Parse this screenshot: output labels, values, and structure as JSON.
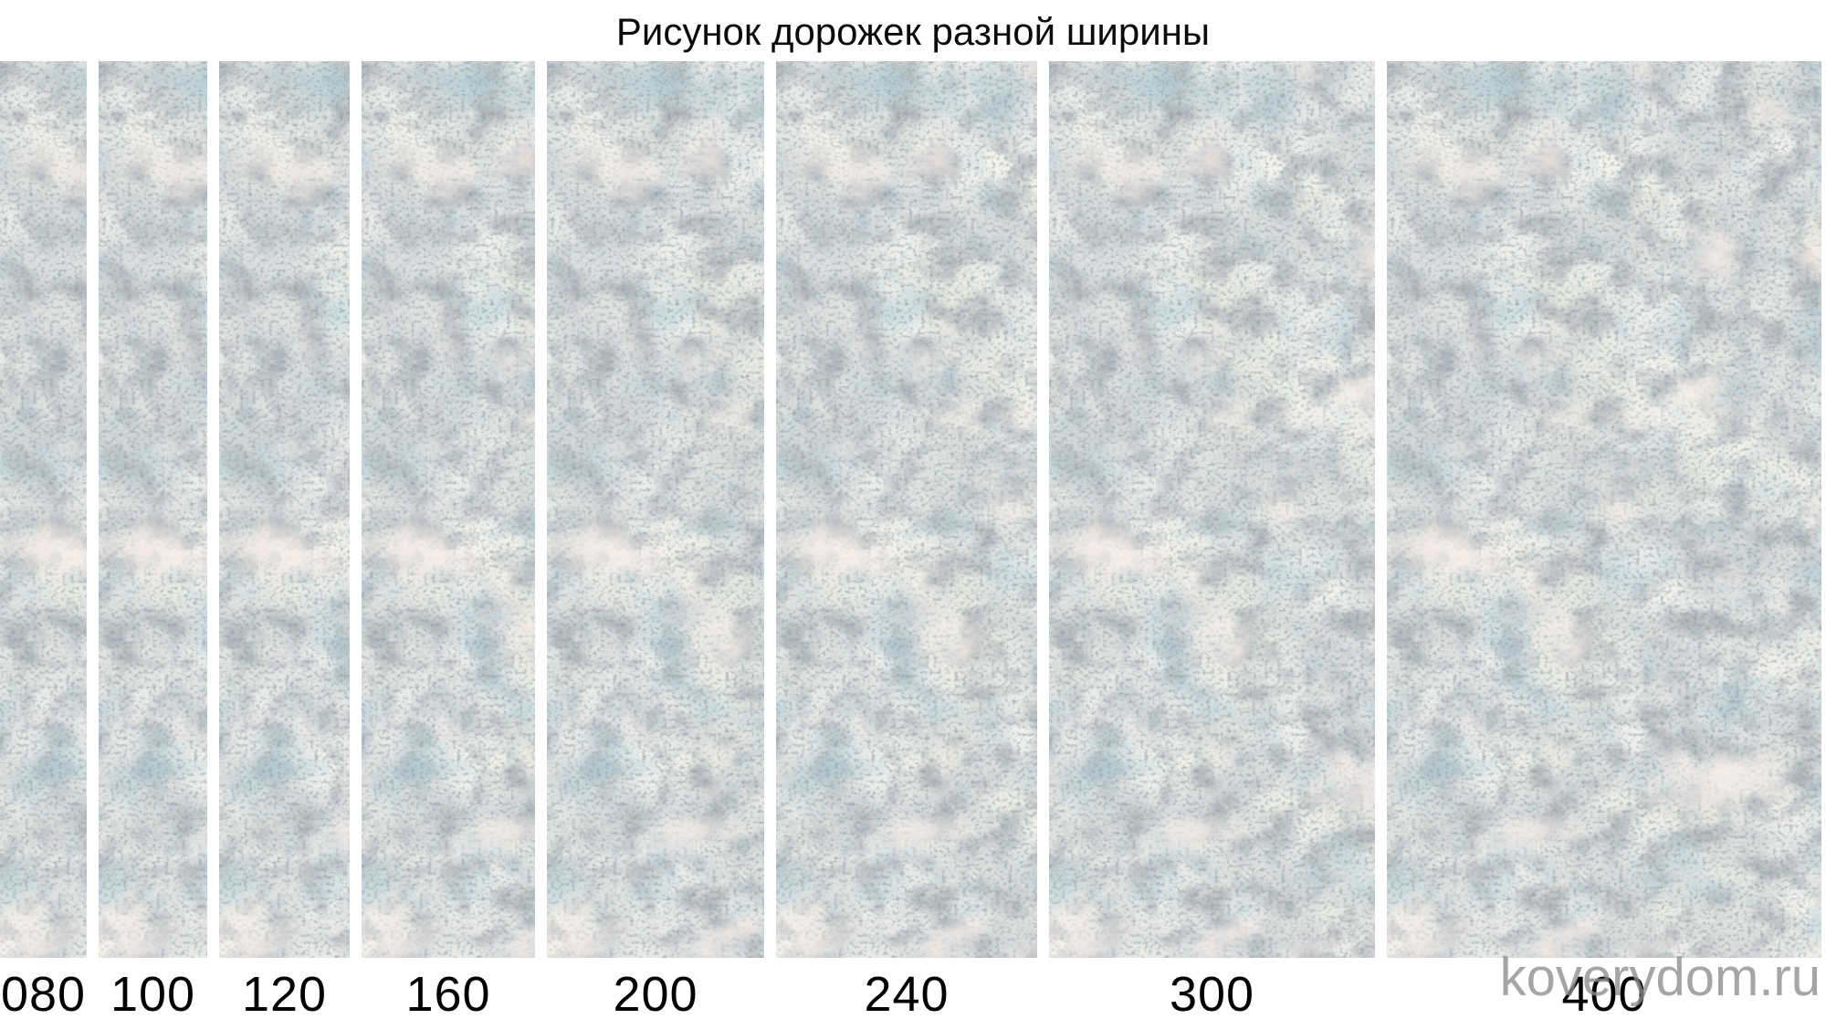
{
  "title": "Рисунок дорожек разной ширины",
  "watermark": {
    "text": "koverydom.ru",
    "color": "#8d8d8d"
  },
  "strips": [
    {
      "label": "080",
      "width_cm": 80
    },
    {
      "label": "100",
      "width_cm": 100
    },
    {
      "label": "120",
      "width_cm": 120
    },
    {
      "label": "160",
      "width_cm": 160
    },
    {
      "label": "200",
      "width_cm": 200
    },
    {
      "label": "240",
      "width_cm": 240
    },
    {
      "label": "300",
      "width_cm": 300
    },
    {
      "label": "400",
      "width_cm": 400
    }
  ],
  "palette": {
    "background": "#ffffff",
    "rug_base": "#e7e9e2",
    "rug_gray": "#99a2a7",
    "rug_dark": "#4f575d",
    "rug_blue": "#78a6b5",
    "rug_pink": "#f0ded5",
    "label_color": "#000000"
  }
}
